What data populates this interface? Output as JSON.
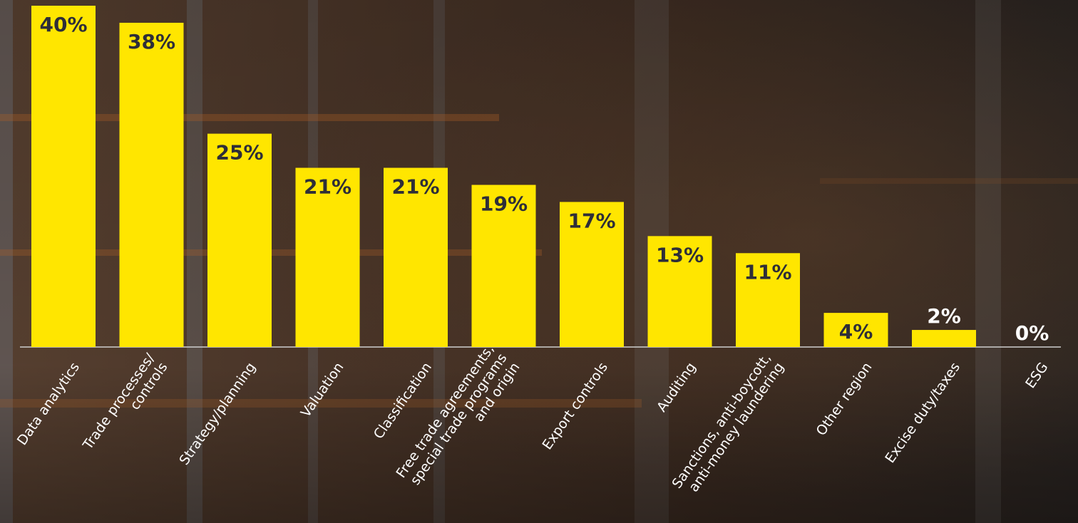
{
  "chart_data": {
    "type": "bar",
    "categories": [
      [
        "Data analytics"
      ],
      [
        "Trade processes/",
        "controls"
      ],
      [
        "Strategy/planning"
      ],
      [
        "Valuation"
      ],
      [
        "Classification"
      ],
      [
        "Free trade agreements,",
        "special trade programs",
        "and origin"
      ],
      [
        "Export controls"
      ],
      [
        "Auditing"
      ],
      [
        "Sanctions, anti-boycott,",
        "anti-money laundering"
      ],
      [
        "Other region"
      ],
      [
        "Excise duty/taxes"
      ],
      [
        "ESG"
      ]
    ],
    "values": [
      40,
      38,
      25,
      21,
      21,
      19,
      17,
      13,
      11,
      4,
      2,
      0
    ],
    "value_labels": [
      "40%",
      "38%",
      "25%",
      "21%",
      "21%",
      "19%",
      "17%",
      "13%",
      "11%",
      "4%",
      "2%",
      "0%"
    ],
    "ylim": [
      0,
      40
    ],
    "unit": "%",
    "grid": false,
    "legend": "none",
    "colors": {
      "bar": "#FFE600",
      "label_inside": "#2E2E38",
      "label_outside": "#FFFFFF",
      "axis": "#CFCFCF",
      "category_text": "#FFFFFF"
    }
  }
}
